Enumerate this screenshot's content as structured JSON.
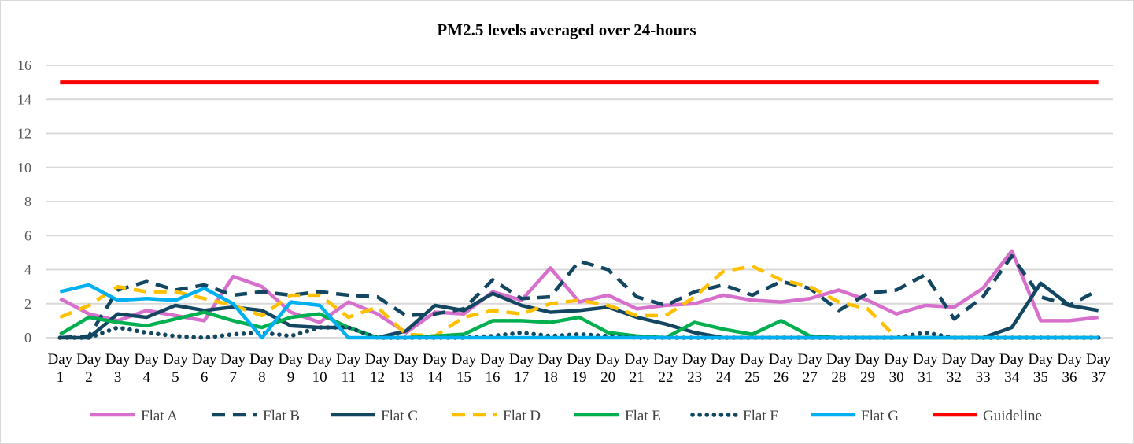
{
  "chart_data": {
    "type": "line",
    "title": "PM2.5 levels averaged over 24-hours",
    "xlabel": "",
    "ylabel": "",
    "ylim": [
      0,
      16
    ],
    "yticks": [
      0,
      2,
      4,
      6,
      8,
      10,
      12,
      14,
      16
    ],
    "grid": true,
    "legend_position": "bottom",
    "categories": [
      "Day 1",
      "Day 2",
      "Day 3",
      "Day 4",
      "Day 5",
      "Day 6",
      "Day 7",
      "Day 8",
      "Day 9",
      "Day 10",
      "Day 11",
      "Day 12",
      "Day 13",
      "Day 14",
      "Day 15",
      "Day 16",
      "Day 17",
      "Day 18",
      "Day 19",
      "Day 20",
      "Day 21",
      "Day 22",
      "Day 23",
      "Day 24",
      "Day 25",
      "Day 26",
      "Day 27",
      "Day 28",
      "Day 29",
      "Day 30",
      "Day 31",
      "Day 32",
      "Day 33",
      "Day 34",
      "Day 35",
      "Day 36",
      "Day 37"
    ],
    "series": [
      {
        "name": "Flat A",
        "color": "#d670cc",
        "style": "solid",
        "values": [
          2.3,
          1.4,
          1.0,
          1.6,
          1.3,
          1.0,
          3.6,
          3.0,
          1.5,
          0.9,
          2.1,
          1.4,
          0.3,
          1.5,
          1.4,
          2.7,
          2.2,
          4.1,
          2.1,
          2.5,
          1.7,
          1.9,
          2.0,
          2.5,
          2.2,
          2.1,
          2.3,
          2.8,
          2.2,
          1.4,
          1.9,
          1.8,
          2.9,
          5.1,
          1.0,
          1.0,
          1.2
        ]
      },
      {
        "name": "Flat B",
        "color": "#124661",
        "style": "dashed",
        "values": [
          0,
          0.1,
          2.8,
          3.3,
          2.8,
          3.1,
          2.5,
          2.7,
          2.5,
          2.7,
          2.5,
          2.4,
          1.3,
          1.4,
          1.7,
          3.4,
          2.3,
          2.4,
          4.5,
          4.0,
          2.4,
          1.9,
          2.7,
          3.1,
          2.5,
          3.3,
          2.9,
          1.6,
          2.6,
          2.8,
          3.7,
          1.1,
          2.4,
          4.8,
          2.4,
          1.9,
          2.8
        ]
      },
      {
        "name": "Flat C",
        "color": "#124661",
        "style": "solid",
        "values": [
          0,
          0,
          1.4,
          1.2,
          1.9,
          1.6,
          1.8,
          1.6,
          0.7,
          0.6,
          0.6,
          0,
          0.4,
          1.9,
          1.6,
          2.6,
          1.9,
          1.5,
          1.6,
          1.8,
          1.2,
          0.8,
          0.3,
          0,
          0,
          0,
          0,
          0,
          0,
          0,
          0,
          0,
          0,
          0.6,
          3.2,
          1.9,
          1.6
        ]
      },
      {
        "name": "Flat D",
        "color": "#ffc000",
        "style": "dashed",
        "values": [
          1.2,
          1.9,
          3.0,
          2.7,
          2.7,
          2.3,
          1.9,
          1.3,
          2.5,
          2.5,
          1.2,
          1.8,
          0.2,
          0.1,
          1.2,
          1.6,
          1.4,
          2.0,
          2.2,
          1.9,
          1.3,
          1.3,
          2.4,
          3.9,
          4.2,
          3.4,
          3.0,
          2.1,
          1.7,
          0,
          0,
          0,
          0,
          0,
          0,
          0,
          0
        ]
      },
      {
        "name": "Flat E",
        "color": "#00b050",
        "style": "solid",
        "values": [
          0.2,
          1.2,
          0.9,
          0.7,
          1.1,
          1.5,
          1.0,
          0.6,
          1.2,
          1.4,
          0.6,
          0,
          0,
          0.1,
          0.2,
          1.0,
          1.0,
          0.9,
          1.2,
          0.3,
          0.1,
          0,
          0.9,
          0.5,
          0.2,
          1.0,
          0.1,
          0,
          0,
          0,
          0,
          0,
          0,
          0,
          0,
          0,
          0
        ]
      },
      {
        "name": "Flat F",
        "color": "#124661",
        "style": "dotted",
        "values": [
          0,
          0,
          0.6,
          0.3,
          0.1,
          0,
          0.2,
          0.3,
          0.1,
          0.6,
          0.6,
          0,
          0,
          0,
          0,
          0.1,
          0.3,
          0.1,
          0.2,
          0.1,
          0,
          0,
          0,
          0,
          0,
          0,
          0,
          0,
          0,
          0,
          0.3,
          0,
          0,
          0,
          0,
          0,
          0
        ]
      },
      {
        "name": "Flat G",
        "color": "#00b0f0",
        "style": "solid",
        "values": [
          2.7,
          3.1,
          2.2,
          2.3,
          2.2,
          2.9,
          2.0,
          0,
          2.1,
          1.9,
          0,
          0,
          0,
          0,
          0,
          0,
          0,
          0,
          0,
          0,
          0,
          0,
          0,
          0,
          0,
          0,
          0,
          0,
          0,
          0,
          0,
          0,
          0,
          0,
          0,
          0,
          0
        ]
      },
      {
        "name": "Guideline",
        "color": "#ff0000",
        "style": "solid",
        "values": [
          15,
          15,
          15,
          15,
          15,
          15,
          15,
          15,
          15,
          15,
          15,
          15,
          15,
          15,
          15,
          15,
          15,
          15,
          15,
          15,
          15,
          15,
          15,
          15,
          15,
          15,
          15,
          15,
          15,
          15,
          15,
          15,
          15,
          15,
          15,
          15,
          15
        ]
      }
    ]
  }
}
